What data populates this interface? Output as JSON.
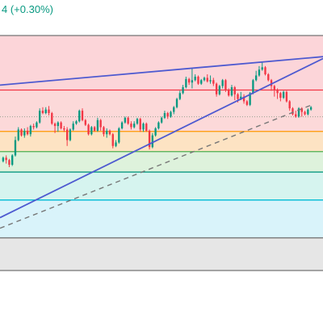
{
  "header": {
    "price_change_text": "4 (+0.30%)"
  },
  "colors": {
    "up": "#089981",
    "down": "#f23645",
    "trendline": "#4e5ad0",
    "projection": "#777777"
  },
  "chart_data": {
    "type": "candlestick",
    "title": "",
    "xlabel": "",
    "ylabel": "",
    "ylim": [
      0,
      100
    ],
    "grid": false,
    "legend": "none",
    "zones": [
      {
        "from": 0.0,
        "to": 23.2,
        "color": "#fcd5d9",
        "border": "#757575"
      },
      {
        "from": 23.2,
        "to": 40.8,
        "color": "#fcd9d9",
        "border": "#f23645"
      },
      {
        "from": 40.8,
        "to": 49.4,
        "color": "#fde3c3",
        "border": "#ff9800"
      },
      {
        "from": 49.4,
        "to": 58.1,
        "color": "#def2dc",
        "border": "#4caf50"
      },
      {
        "from": 58.1,
        "to": 70.0,
        "color": "#d6f4ef",
        "border": "#089981"
      },
      {
        "from": 70.0,
        "to": 86.1,
        "color": "#d9f3fa",
        "border": "#00bcd4"
      },
      {
        "from": 86.1,
        "to": 100.0,
        "color": "#e6e6e6",
        "border": "#757575"
      }
    ],
    "reference_level": 34.6,
    "trendlines": [
      {
        "from": [
          0,
          21.1
        ],
        "to": [
          100,
          9.0
        ],
        "style": "solid"
      },
      {
        "from": [
          0,
          77.5
        ],
        "to": [
          100,
          9.8
        ],
        "style": "solid"
      },
      {
        "from": [
          0,
          82.0
        ],
        "to": [
          96,
          29.8
        ],
        "style": "dashed"
      }
    ],
    "candles": [
      [
        53.5,
        52.0,
        51.5,
        54.0
      ],
      [
        52.0,
        53.0,
        51.0,
        54.5
      ],
      [
        53.0,
        55.0,
        52.5,
        56.0
      ],
      [
        55.0,
        51.0,
        50.5,
        55.5
      ],
      [
        51.0,
        44.5,
        43.0,
        51.5
      ],
      [
        44.5,
        40.0,
        39.0,
        45.0
      ],
      [
        40.0,
        42.5,
        39.5,
        43.0
      ],
      [
        42.5,
        40.5,
        39.5,
        43.5
      ],
      [
        40.5,
        42.0,
        39.0,
        42.5
      ],
      [
        42.0,
        38.5,
        38.0,
        43.0
      ],
      [
        38.5,
        39.0,
        37.5,
        40.0
      ],
      [
        39.0,
        37.0,
        36.5,
        39.5
      ],
      [
        37.0,
        32.0,
        31.0,
        37.5
      ],
      [
        32.0,
        33.0,
        30.5,
        33.5
      ],
      [
        33.0,
        31.5,
        30.5,
        33.5
      ],
      [
        31.5,
        33.0,
        30.0,
        34.0
      ],
      [
        33.0,
        37.5,
        32.5,
        38.0
      ],
      [
        37.5,
        38.5,
        37.0,
        41.5
      ],
      [
        38.5,
        37.0,
        36.5,
        41.0
      ],
      [
        37.0,
        39.5,
        36.5,
        40.0
      ],
      [
        39.5,
        40.0,
        38.5,
        41.0
      ],
      [
        40.0,
        44.5,
        39.0,
        47.0
      ],
      [
        44.5,
        40.0,
        39.5,
        45.0
      ],
      [
        40.0,
        37.5,
        36.5,
        40.5
      ],
      [
        37.5,
        36.5,
        36.0,
        38.0
      ],
      [
        36.5,
        32.0,
        31.5,
        37.0
      ],
      [
        32.0,
        36.0,
        31.0,
        36.5
      ],
      [
        36.0,
        38.0,
        35.5,
        38.5
      ],
      [
        38.0,
        42.0,
        37.5,
        42.5
      ],
      [
        42.0,
        39.0,
        38.5,
        42.5
      ],
      [
        39.0,
        40.5,
        38.5,
        41.0
      ],
      [
        40.5,
        36.0,
        35.0,
        41.0
      ],
      [
        36.0,
        39.0,
        35.5,
        40.5
      ],
      [
        39.0,
        42.0,
        38.5,
        43.0
      ],
      [
        42.0,
        40.5,
        39.5,
        43.5
      ],
      [
        40.5,
        42.0,
        40.0,
        42.5
      ],
      [
        42.0,
        47.0,
        41.5,
        48.0
      ],
      [
        47.0,
        45.5,
        44.5,
        47.5
      ],
      [
        45.5,
        39.5,
        39.0,
        46.0
      ],
      [
        39.5,
        37.0,
        36.5,
        40.0
      ],
      [
        37.0,
        35.0,
        34.5,
        37.5
      ],
      [
        35.0,
        37.5,
        34.5,
        38.0
      ],
      [
        37.5,
        39.0,
        36.5,
        40.0
      ],
      [
        39.0,
        37.5,
        36.5,
        39.5
      ],
      [
        37.5,
        35.5,
        35.0,
        38.0
      ],
      [
        35.5,
        40.0,
        35.0,
        41.0
      ],
      [
        40.0,
        37.5,
        37.0,
        41.0
      ],
      [
        37.5,
        40.5,
        37.0,
        41.0
      ],
      [
        40.5,
        47.5,
        40.0,
        48.5
      ],
      [
        47.5,
        42.5,
        41.5,
        48.0
      ],
      [
        42.5,
        39.5,
        39.0,
        43.0
      ],
      [
        39.5,
        37.0,
        36.5,
        40.0
      ],
      [
        37.0,
        35.0,
        34.5,
        37.5
      ],
      [
        35.0,
        33.0,
        32.0,
        35.5
      ],
      [
        33.0,
        34.5,
        32.5,
        35.5
      ],
      [
        34.5,
        32.5,
        32.0,
        35.0
      ],
      [
        32.5,
        30.5,
        30.0,
        33.5
      ],
      [
        30.5,
        27.0,
        26.5,
        31.0
      ],
      [
        27.0,
        24.5,
        23.5,
        27.5
      ],
      [
        24.5,
        22.0,
        21.0,
        25.0
      ],
      [
        22.0,
        18.5,
        17.5,
        22.5
      ],
      [
        18.5,
        20.0,
        18.0,
        21.0
      ],
      [
        20.0,
        19.0,
        14.0,
        22.5
      ],
      [
        19.0,
        17.5,
        16.5,
        19.5
      ],
      [
        17.5,
        20.5,
        17.0,
        21.0
      ],
      [
        20.5,
        19.0,
        18.5,
        21.0
      ],
      [
        19.0,
        18.0,
        17.5,
        19.5
      ],
      [
        18.0,
        19.5,
        16.5,
        20.0
      ],
      [
        19.5,
        19.0,
        17.0,
        20.5
      ],
      [
        19.0,
        20.5,
        18.0,
        21.5
      ],
      [
        20.5,
        25.0,
        20.0,
        26.0
      ],
      [
        25.0,
        21.5,
        21.0,
        25.5
      ],
      [
        21.5,
        19.0,
        18.5,
        22.5
      ],
      [
        19.0,
        23.0,
        18.5,
        24.0
      ],
      [
        23.0,
        25.5,
        22.5,
        26.0
      ],
      [
        25.5,
        22.0,
        21.0,
        26.0
      ],
      [
        22.0,
        25.0,
        21.5,
        27.5
      ],
      [
        25.0,
        27.0,
        24.5,
        28.5
      ],
      [
        27.0,
        26.0,
        24.0,
        27.5
      ],
      [
        26.0,
        28.0,
        25.0,
        29.0
      ],
      [
        28.0,
        29.5,
        27.5,
        30.0
      ],
      [
        29.5,
        24.5,
        24.0,
        30.0
      ],
      [
        24.5,
        19.0,
        18.5,
        25.0
      ],
      [
        19.0,
        17.0,
        15.0,
        19.5
      ],
      [
        17.0,
        14.5,
        13.0,
        17.5
      ],
      [
        14.5,
        13.5,
        11.5,
        15.0
      ],
      [
        13.5,
        16.5,
        13.0,
        17.0
      ],
      [
        16.5,
        19.0,
        16.0,
        19.5
      ],
      [
        19.0,
        21.5,
        18.5,
        23.5
      ],
      [
        21.5,
        23.0,
        21.0,
        26.0
      ],
      [
        23.0,
        24.5,
        22.5,
        27.0
      ],
      [
        24.5,
        26.5,
        24.0,
        28.0
      ],
      [
        26.5,
        24.0,
        23.5,
        27.0
      ],
      [
        24.0,
        28.0,
        23.5,
        28.5
      ],
      [
        28.0,
        31.0,
        27.5,
        32.0
      ],
      [
        31.0,
        33.5,
        30.5,
        34.0
      ],
      [
        33.5,
        34.5,
        32.0,
        35.0
      ],
      [
        34.5,
        31.0,
        30.5,
        35.0
      ],
      [
        31.0,
        32.5,
        30.5,
        34.5
      ],
      [
        32.5,
        33.5,
        32.0,
        34.0
      ],
      [
        33.5,
        31.5,
        31.0,
        34.0
      ],
      [
        31.5,
        30.5,
        30.0,
        32.0
      ]
    ]
  }
}
